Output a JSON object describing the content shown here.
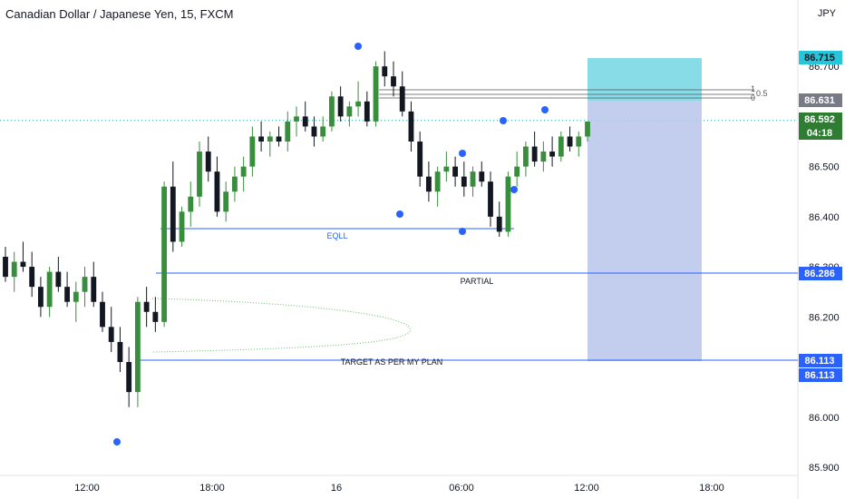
{
  "header": {
    "title": "Canadian Dollar / Japanese Yen, 15, FXCM",
    "currency": "JPY"
  },
  "chart_data": {
    "type": "candlestick",
    "title": "Canadian Dollar / Japanese Yen, 15, FXCM",
    "ylim": [
      85.9,
      86.76
    ],
    "y_ticks": [
      "85.900",
      "86.000",
      "86.200",
      "86.300",
      "86.400",
      "86.500",
      "86.700"
    ],
    "x_ticks": [
      "12:00",
      "18:00",
      "16",
      "06:00",
      "12:00",
      "18:00"
    ],
    "colors": {
      "up": "#26a69a",
      "up_body": "#388e3c",
      "down": "#131722",
      "line": "#2962ff",
      "dot": "#2962ff",
      "tp_zone": "#5fd0df",
      "sl_zone": "#b8c6ec",
      "grid": "#f0f3fa"
    },
    "candles_ohlc": [
      [
        86.32,
        86.34,
        86.27,
        86.28
      ],
      [
        86.28,
        86.33,
        86.25,
        86.31
      ],
      [
        86.31,
        86.35,
        86.29,
        86.3
      ],
      [
        86.3,
        86.33,
        86.24,
        86.26
      ],
      [
        86.26,
        86.28,
        86.2,
        86.22
      ],
      [
        86.22,
        86.3,
        86.2,
        86.29
      ],
      [
        86.29,
        86.32,
        86.25,
        86.26
      ],
      [
        86.26,
        86.29,
        86.22,
        86.23
      ],
      [
        86.23,
        86.27,
        86.19,
        86.25
      ],
      [
        86.25,
        86.3,
        86.22,
        86.28
      ],
      [
        86.28,
        86.31,
        86.22,
        86.23
      ],
      [
        86.23,
        86.25,
        86.17,
        86.18
      ],
      [
        86.18,
        86.22,
        86.13,
        86.15
      ],
      [
        86.15,
        86.18,
        86.09,
        86.11
      ],
      [
        86.11,
        86.14,
        86.02,
        86.05
      ],
      [
        86.05,
        86.24,
        86.02,
        86.23
      ],
      [
        86.23,
        86.26,
        86.18,
        86.21
      ],
      [
        86.21,
        86.24,
        86.17,
        86.19
      ],
      [
        86.19,
        86.47,
        86.18,
        86.46
      ],
      [
        86.46,
        86.51,
        86.33,
        86.35
      ],
      [
        86.35,
        86.42,
        86.34,
        86.41
      ],
      [
        86.41,
        86.47,
        86.38,
        86.44
      ],
      [
        86.44,
        86.55,
        86.42,
        86.53
      ],
      [
        86.53,
        86.56,
        86.47,
        86.49
      ],
      [
        86.49,
        86.52,
        86.4,
        86.41
      ],
      [
        86.41,
        86.47,
        86.39,
        86.45
      ],
      [
        86.45,
        86.5,
        86.43,
        86.48
      ],
      [
        86.48,
        86.52,
        86.45,
        86.5
      ],
      [
        86.5,
        86.58,
        86.48,
        86.56
      ],
      [
        86.56,
        86.59,
        86.53,
        86.55
      ],
      [
        86.55,
        86.57,
        86.52,
        86.56
      ],
      [
        86.56,
        86.58,
        86.54,
        86.55
      ],
      [
        86.55,
        86.61,
        86.53,
        86.59
      ],
      [
        86.59,
        86.62,
        86.56,
        86.6
      ],
      [
        86.6,
        86.63,
        86.57,
        86.58
      ],
      [
        86.58,
        86.6,
        86.54,
        86.56
      ],
      [
        86.56,
        86.6,
        86.55,
        86.58
      ],
      [
        86.58,
        86.65,
        86.57,
        86.64
      ],
      [
        86.64,
        86.66,
        86.59,
        86.6
      ],
      [
        86.6,
        86.63,
        86.58,
        86.62
      ],
      [
        86.62,
        86.67,
        86.6,
        86.63
      ],
      [
        86.63,
        86.65,
        86.58,
        86.59
      ],
      [
        86.59,
        86.71,
        86.58,
        86.7
      ],
      [
        86.7,
        86.73,
        86.66,
        86.68
      ],
      [
        86.68,
        86.71,
        86.64,
        86.66
      ],
      [
        86.66,
        86.69,
        86.6,
        86.61
      ],
      [
        86.61,
        86.63,
        86.53,
        86.55
      ],
      [
        86.55,
        86.57,
        86.46,
        86.48
      ],
      [
        86.48,
        86.51,
        86.43,
        86.45
      ],
      [
        86.45,
        86.5,
        86.42,
        86.49
      ],
      [
        86.49,
        86.53,
        86.47,
        86.5
      ],
      [
        86.5,
        86.52,
        86.46,
        86.48
      ],
      [
        86.48,
        86.51,
        86.44,
        86.46
      ],
      [
        86.46,
        86.5,
        86.44,
        86.49
      ],
      [
        86.49,
        86.51,
        86.46,
        86.47
      ],
      [
        86.47,
        86.49,
        86.38,
        86.4
      ],
      [
        86.4,
        86.43,
        86.36,
        86.37
      ],
      [
        86.37,
        86.49,
        86.36,
        86.48
      ],
      [
        86.48,
        86.53,
        86.46,
        86.5
      ],
      [
        86.5,
        86.55,
        86.48,
        86.54
      ],
      [
        86.54,
        86.57,
        86.5,
        86.51
      ],
      [
        86.51,
        86.55,
        86.49,
        86.53
      ],
      [
        86.53,
        86.56,
        86.5,
        86.52
      ],
      [
        86.52,
        86.57,
        86.51,
        86.56
      ],
      [
        86.56,
        86.58,
        86.53,
        86.54
      ],
      [
        86.54,
        86.57,
        86.52,
        86.56
      ],
      [
        86.56,
        86.59,
        86.55,
        86.59
      ]
    ],
    "levels": [
      {
        "name": "EQLL",
        "price": 86.36
      },
      {
        "name": "PARTIAL",
        "price": 86.286
      },
      {
        "name": "TARGET AS PER MY PLAN",
        "price": 86.113
      }
    ],
    "fib_labels": [
      "1",
      "0.5",
      "0"
    ],
    "price_labels": [
      {
        "value": "86.715",
        "kind": "target"
      },
      {
        "value": "86.631",
        "kind": "entry"
      },
      {
        "value": "86.592",
        "kind": "last"
      },
      {
        "value": "04:18",
        "kind": "countdown"
      },
      {
        "value": "86.286",
        "kind": "level"
      },
      {
        "value": "86.113",
        "kind": "level"
      },
      {
        "value": "86.113",
        "kind": "level"
      }
    ]
  }
}
